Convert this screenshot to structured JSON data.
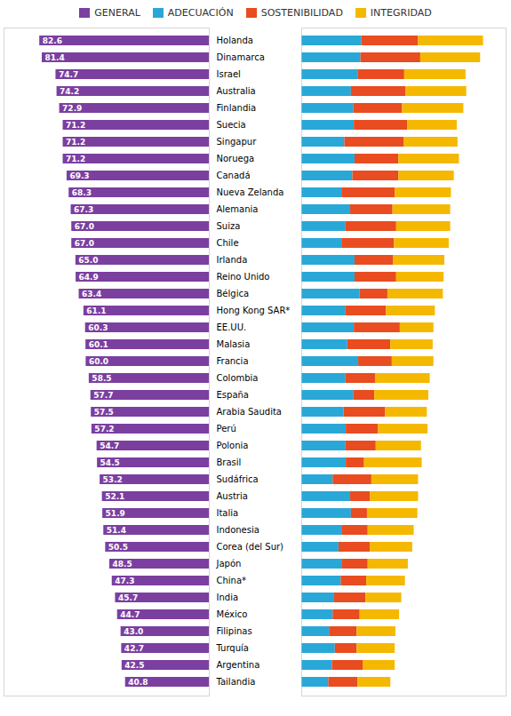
{
  "chart_data": [
    {
      "type": "bar",
      "orientation": "horizontal",
      "legend": "top",
      "tick_labels": "y",
      "data_labels": true,
      "categories": [
        "Holanda",
        "Dinamarca",
        "Israel",
        "Australia",
        "Finlandia",
        "Suecia",
        "Singapur",
        "Noruega",
        "Canadá",
        "Nueva Zelanda",
        "Alemania",
        "Suiza",
        "Chile",
        "Irlanda",
        "Reino Unido",
        "Bélgica",
        "Hong Kong SAR*",
        "EE.UU.",
        "Malasia",
        "Francia",
        "Colombia",
        "España",
        "Arabia Saudita",
        "Perú",
        "Polonia",
        "Brasil",
        "Sudáfrica",
        "Austria",
        "Italia",
        "Indonesia",
        "Corea (del Sur)",
        "Japón",
        "China*",
        "India",
        "México",
        "Filipinas",
        "Turquía",
        "Argentina",
        "Tailandia"
      ],
      "xlim": [
        100,
        0
      ],
      "series": [
        {
          "name": "GENERAL",
          "color": "#7B3FA0",
          "values": [
            82.6,
            81.4,
            74.7,
            74.2,
            72.9,
            71.2,
            71.2,
            71.2,
            69.3,
            68.3,
            67.3,
            67.0,
            67.0,
            65.0,
            64.9,
            63.4,
            61.1,
            60.3,
            60.1,
            60.0,
            58.5,
            57.7,
            57.5,
            57.2,
            54.7,
            54.5,
            53.2,
            52.1,
            51.9,
            51.4,
            50.5,
            48.5,
            47.3,
            45.7,
            44.7,
            43.0,
            42.7,
            42.5,
            40.8
          ],
          "value_labels": [
            "82.6",
            "81.4",
            "74.7",
            "74.2",
            "72.9",
            "71.2",
            "71.2",
            "71.2",
            "69.3",
            "68.3",
            "67.3",
            "67.0",
            "67.0",
            "65.0",
            "64.9",
            "63.4",
            "61.1",
            "60.3",
            "60.1",
            "60.0",
            "58.5",
            "57.7",
            "57.5",
            "57.2",
            "54.7",
            "54.5",
            "53.2",
            "52.1",
            "51.9",
            "51.4",
            "50.5",
            "48.5",
            "47.3",
            "45.7",
            "44.7",
            "43.0",
            "42.7",
            "42.5",
            "40.8"
          ]
        }
      ]
    },
    {
      "type": "bar",
      "orientation": "horizontal",
      "stacked": true,
      "legend": "top",
      "tick_labels": false,
      "categories": [
        "Holanda",
        "Dinamarca",
        "Israel",
        "Australia",
        "Finlandia",
        "Suecia",
        "Singapur",
        "Noruega",
        "Canadá",
        "Nueva Zelanda",
        "Alemania",
        "Suiza",
        "Chile",
        "Irlanda",
        "Reino Unido",
        "Bélgica",
        "Hong Kong SAR*",
        "EE.UU.",
        "Malasia",
        "Francia",
        "Colombia",
        "España",
        "Arabia Saudita",
        "Perú",
        "Polonia",
        "Brasil",
        "Sudáfrica",
        "Austria",
        "Italia",
        "Indonesia",
        "Corea (del Sur)",
        "Japón",
        "China*",
        "India",
        "México",
        "Filipinas",
        "Turquía",
        "Argentina",
        "Tailandia"
      ],
      "xlim": [
        0,
        280
      ],
      "series": [
        {
          "name": "ADECUACIÓN",
          "color": "#29A8D8",
          "values": [
            82.0,
            81.0,
            77.0,
            68.0,
            71.0,
            72.0,
            59.0,
            73.0,
            70.0,
            55.0,
            67.0,
            60.0,
            55.0,
            73.0,
            73.0,
            80.0,
            60.0,
            72.0,
            63.0,
            78.0,
            60.0,
            71.0,
            58.0,
            61.0,
            60.0,
            61.0,
            43.0,
            67.0,
            68.0,
            55.0,
            51.0,
            55.0,
            54.0,
            45.0,
            43.0,
            38.0,
            46.0,
            42.0,
            37.0
          ]
        },
        {
          "name": "SOSTENIBILIDAD",
          "color": "#E84C20",
          "values": [
            78.0,
            82.0,
            64.0,
            75.0,
            67.0,
            73.0,
            81.0,
            60.0,
            63.0,
            73.0,
            58.0,
            70.0,
            72.0,
            53.0,
            57.0,
            38.0,
            56.0,
            63.0,
            59.0,
            46.0,
            41.0,
            29.0,
            57.0,
            44.0,
            42.0,
            25.0,
            53.0,
            27.0,
            22.0,
            36.0,
            43.0,
            36.0,
            35.0,
            43.0,
            37.0,
            38.0,
            30.0,
            42.0,
            40.0
          ]
        },
        {
          "name": "INTEGRIDAD",
          "color": "#F5B800",
          "values": [
            89.0,
            82.0,
            84.0,
            83.0,
            84.0,
            68.0,
            74.0,
            83.0,
            76.0,
            77.0,
            79.0,
            74.0,
            75.0,
            70.0,
            65.0,
            76.0,
            67.0,
            46.0,
            58.0,
            57.0,
            75.0,
            74.0,
            57.0,
            68.0,
            62.0,
            79.0,
            64.0,
            66.0,
            69.0,
            63.0,
            58.0,
            55.0,
            53.0,
            49.0,
            54.0,
            53.0,
            52.0,
            44.0,
            45.0
          ]
        }
      ]
    }
  ]
}
